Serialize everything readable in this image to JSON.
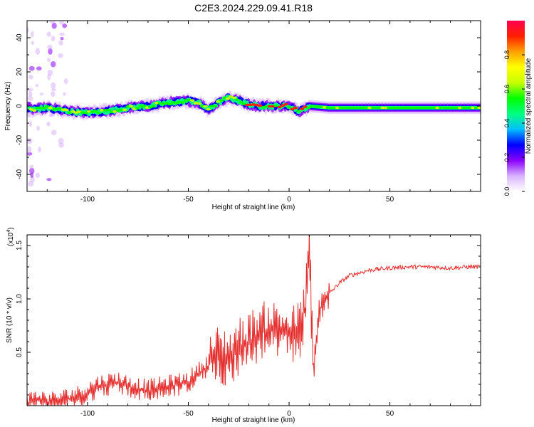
{
  "title": "C2E3.2024.229.09.41.R18",
  "colors": {
    "snr_line": "#e53030",
    "frame": "#000000",
    "background": "#ffffff"
  },
  "chart_data": [
    {
      "type": "heatmap",
      "xlabel": "Height of straight line (km)",
      "ylabel": "Frequency (Hz)",
      "xlim": [
        -130,
        95
      ],
      "ylim": [
        -50,
        50
      ],
      "xticks": [
        -100,
        -50,
        0,
        50
      ],
      "yticks": [
        -40,
        -20,
        0,
        20,
        40
      ],
      "colorbar": {
        "label": "Normalized spectral amplitude",
        "range": [
          0,
          1
        ],
        "ticks": [
          "0.0",
          "0.2",
          "0.4",
          "0.6",
          "0.8"
        ],
        "colormap": [
          "#ffffff",
          "#d9b3ff",
          "#8a00ff",
          "#0000ff",
          "#00bfff",
          "#00ff80",
          "#00ff00",
          "#c8ff00",
          "#ffff00",
          "#ffa000",
          "#ff2000",
          "#ff0050"
        ]
      },
      "ridge": {
        "x": [
          -128,
          -120,
          -110,
          -100,
          -90,
          -80,
          -70,
          -60,
          -50,
          -45,
          -40,
          -35,
          -30,
          -25,
          -20,
          -15,
          -10,
          -5,
          0,
          5,
          10,
          20,
          30,
          40,
          50,
          60,
          70,
          80,
          90,
          95
        ],
        "frequency": [
          -2,
          -1,
          -3,
          -4,
          -3,
          -1,
          0,
          2,
          3,
          2,
          -2,
          2,
          5,
          3,
          1,
          0,
          0,
          0,
          0,
          -3,
          0,
          -1,
          -1,
          -1,
          -1,
          -1,
          -1,
          -1,
          -1,
          -1
        ]
      }
    },
    {
      "type": "line",
      "xlabel": "Height of straight line (km)",
      "ylabel": "SNR (10 * v/v)",
      "y_multiplier": "(x10",
      "y_multiplier_exp": "4",
      "y_multiplier_close": ")",
      "xlim": [
        -130,
        95
      ],
      "ylim": [
        0,
        1.6
      ],
      "xticks": [
        -100,
        -50,
        0,
        50
      ],
      "yticks": [
        0.5,
        1.0,
        1.5
      ],
      "grid": false,
      "series": [
        {
          "x": [
            -130,
            -125,
            -120,
            -115,
            -110,
            -105,
            -100,
            -95,
            -90,
            -85,
            -80,
            -75,
            -70,
            -65,
            -60,
            -55,
            -50,
            -45,
            -40,
            -35,
            -30,
            -25,
            -20,
            -15,
            -10,
            -5,
            0,
            5,
            8,
            10,
            12,
            15,
            20,
            25,
            30,
            40,
            50,
            60,
            70,
            80,
            90,
            95
          ],
          "y": [
            0.02,
            0.05,
            0.03,
            0.03,
            0.06,
            0.08,
            0.12,
            0.18,
            0.2,
            0.22,
            0.18,
            0.16,
            0.14,
            0.16,
            0.18,
            0.2,
            0.22,
            0.3,
            0.38,
            0.48,
            0.45,
            0.55,
            0.6,
            0.68,
            0.72,
            0.7,
            0.65,
            0.7,
            0.9,
            1.55,
            0.28,
            0.9,
            1.05,
            1.15,
            1.22,
            1.27,
            1.29,
            1.3,
            1.3,
            1.29,
            1.3,
            1.3
          ]
        }
      ]
    }
  ]
}
